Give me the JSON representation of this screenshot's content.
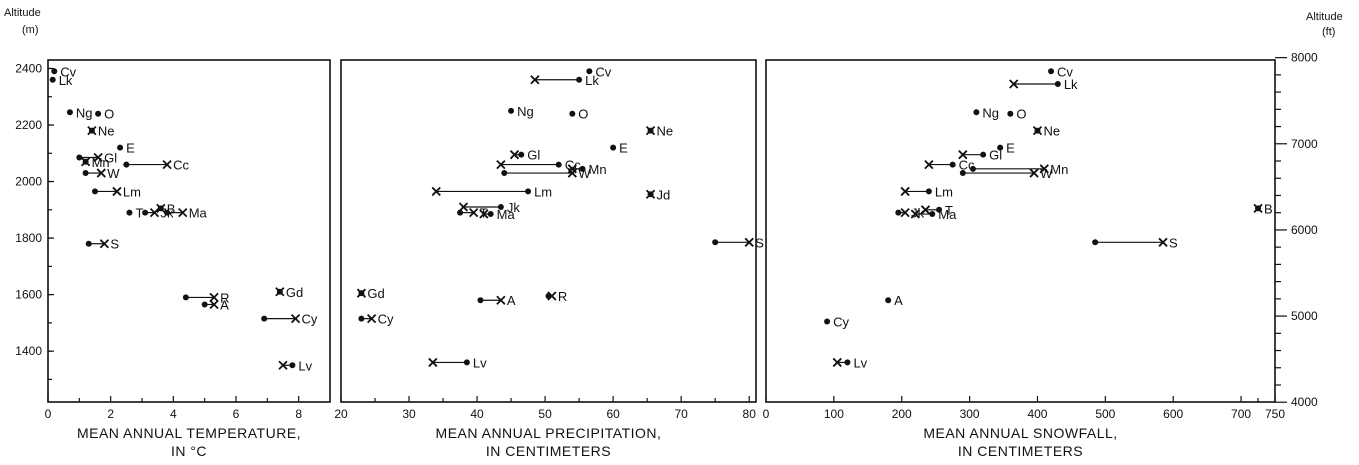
{
  "left_axis": {
    "title": "Altitude",
    "unit": "(m)",
    "ticks": [
      1400,
      1600,
      1800,
      2000,
      2200,
      2400
    ]
  },
  "right_axis": {
    "title": "Altitude",
    "unit": "(ft)",
    "ticks": [
      4000,
      5000,
      6000,
      7000,
      8000
    ]
  },
  "chart_data": [
    {
      "type": "scatter",
      "xlabel": [
        "MEAN ANNUAL TEMPERATURE,",
        "IN °C"
      ],
      "xlim": [
        0,
        9
      ],
      "xticks": [
        0,
        2,
        4,
        6,
        8
      ],
      "ylim": [
        1220,
        2430
      ],
      "ylabel": "Altitude (m)",
      "points": [
        {
          "label": "Cv",
          "y": 2390,
          "x": 0.2
        },
        {
          "label": "Lk",
          "y": 2360,
          "x": 0.15
        },
        {
          "label": "Ng",
          "y": 2245,
          "x": 0.7
        },
        {
          "label": "O",
          "y": 2240,
          "x": 1.6
        },
        {
          "label": "Ne",
          "y": 2180,
          "x": 1.4,
          "x2": 1.4
        },
        {
          "label": "E",
          "y": 2120,
          "x": 2.3
        },
        {
          "label": "Gl",
          "y": 2085,
          "x": 1.0,
          "x2": 1.6
        },
        {
          "label": "Mn",
          "y": 2070,
          "x": 1.2,
          "x2": 1.2
        },
        {
          "label": "Cc",
          "y": 2060,
          "x": 2.5,
          "x2": 3.8
        },
        {
          "label": "W",
          "y": 2030,
          "x": 1.2,
          "x2": 1.7
        },
        {
          "label": "Lm",
          "y": 1965,
          "x": 1.5,
          "x2": 2.2
        },
        {
          "label": "B",
          "y": 1905,
          "x": 3.6,
          "x2": 3.6
        },
        {
          "label": "T",
          "y": 1890,
          "x": 2.6
        },
        {
          "label": "Jk",
          "y": 1890,
          "x": 3.1,
          "x2": 3.4
        },
        {
          "label": "Ma",
          "y": 1890,
          "x": 3.8,
          "x2": 4.3
        },
        {
          "label": "S",
          "y": 1780,
          "x": 1.3,
          "x2": 1.8
        },
        {
          "label": "R",
          "y": 1590,
          "x": 4.4,
          "x2": 5.3
        },
        {
          "label": "A",
          "y": 1565,
          "x": 5.0,
          "x2": 5.3
        },
        {
          "label": "Gd",
          "y": 1610,
          "x": 7.4,
          "x2": 7.4
        },
        {
          "label": "Cy",
          "y": 1515,
          "x": 6.9,
          "x2": 7.9
        },
        {
          "label": "Lv",
          "y": 1350,
          "x": 7.8,
          "x2": 7.5
        }
      ]
    },
    {
      "type": "scatter",
      "xlabel": [
        "MEAN ANNUAL PRECIPITATION,",
        "IN CENTIMETERS"
      ],
      "xlim": [
        20,
        81
      ],
      "xticks": [
        20,
        30,
        40,
        50,
        60,
        70,
        80
      ],
      "ylim": [
        1220,
        2430
      ],
      "ylabel": "Altitude (m)",
      "points": [
        {
          "label": "Cv",
          "y": 2390,
          "x": 56.5
        },
        {
          "label": "Lk",
          "y": 2360,
          "x": 55,
          "x2": 48.5
        },
        {
          "label": "Ng",
          "y": 2250,
          "x": 45
        },
        {
          "label": "O",
          "y": 2240,
          "x": 54
        },
        {
          "label": "Ne",
          "y": 2180,
          "x": 65.5,
          "x2": 65.5
        },
        {
          "label": "E",
          "y": 2120,
          "x": 60
        },
        {
          "label": "Gl",
          "y": 2095,
          "x": 46.5,
          "x2": 45.5
        },
        {
          "label": "Cc",
          "y": 2060,
          "x": 52,
          "x2": 43.5
        },
        {
          "label": "Mn",
          "y": 2045,
          "x": 55.5,
          "x2": 54
        },
        {
          "label": "W",
          "y": 2030,
          "x": 44,
          "x2": 54
        },
        {
          "label": "Lm",
          "y": 1965,
          "x": 47.5,
          "x2": 34
        },
        {
          "label": "Jd",
          "y": 1955,
          "x": 65.5,
          "x2": 65.5
        },
        {
          "label": "Jk",
          "y": 1910,
          "x": 43.5,
          "x2": 38
        },
        {
          "label": "T",
          "y": 1890,
          "x": 37.5,
          "x2": 39.5
        },
        {
          "label": "Ma",
          "y": 1885,
          "x": 42,
          "x2": 41
        },
        {
          "label": "S",
          "y": 1785,
          "x": 75,
          "x2": 80
        },
        {
          "label": "Gd",
          "y": 1605,
          "x": 23,
          "x2": 23
        },
        {
          "label": "A",
          "y": 1580,
          "x": 40.5,
          "x2": 43.5
        },
        {
          "label": "R",
          "y": 1595,
          "x": 50.5,
          "x2": 51
        },
        {
          "label": "Cy",
          "y": 1515,
          "x": 23,
          "x2": 24.5
        },
        {
          "label": "Lv",
          "y": 1360,
          "x": 38.5,
          "x2": 33.5
        }
      ]
    },
    {
      "type": "scatter",
      "xlabel": [
        "MEAN ANNUAL SNOWFALL,",
        "IN CENTIMETERS"
      ],
      "xlim": [
        0,
        750
      ],
      "xticks": [
        0,
        100,
        200,
        300,
        400,
        500,
        600,
        700,
        750
      ],
      "ylim": [
        1220,
        2430
      ],
      "ylabel": "Altitude (m)",
      "points": [
        {
          "label": "Cv",
          "y": 2390,
          "x": 420
        },
        {
          "label": "Lk",
          "y": 2345,
          "x": 430,
          "x2": 365
        },
        {
          "label": "Ng",
          "y": 2245,
          "x": 310
        },
        {
          "label": "O",
          "y": 2240,
          "x": 360
        },
        {
          "label": "Ne",
          "y": 2180,
          "x": 400,
          "x2": 400
        },
        {
          "label": "E",
          "y": 2120,
          "x": 345
        },
        {
          "label": "Gl",
          "y": 2095,
          "x": 320,
          "x2": 290
        },
        {
          "label": "Cc",
          "y": 2060,
          "x": 275,
          "x2": 240
        },
        {
          "label": "Mn",
          "y": 2045,
          "x": 305,
          "x2": 410
        },
        {
          "label": "W",
          "y": 2030,
          "x": 290,
          "x2": 395
        },
        {
          "label": "Lm",
          "y": 1965,
          "x": 240,
          "x2": 205
        },
        {
          "label": "T",
          "y": 1900,
          "x": 255,
          "x2": 235
        },
        {
          "label": "Jk",
          "y": 1890,
          "x": 195,
          "x2": 205
        },
        {
          "label": "Ma",
          "y": 1885,
          "x": 245,
          "x2": 220
        },
        {
          "label": "B",
          "y": 1905,
          "x": 725,
          "x2": 725
        },
        {
          "label": "S",
          "y": 1785,
          "x": 485,
          "x2": 585
        },
        {
          "label": "A",
          "y": 1580,
          "x": 180
        },
        {
          "label": "Cy",
          "y": 1505,
          "x": 90
        },
        {
          "label": "Lv",
          "y": 1360,
          "x": 120,
          "x2": 105
        }
      ]
    }
  ]
}
